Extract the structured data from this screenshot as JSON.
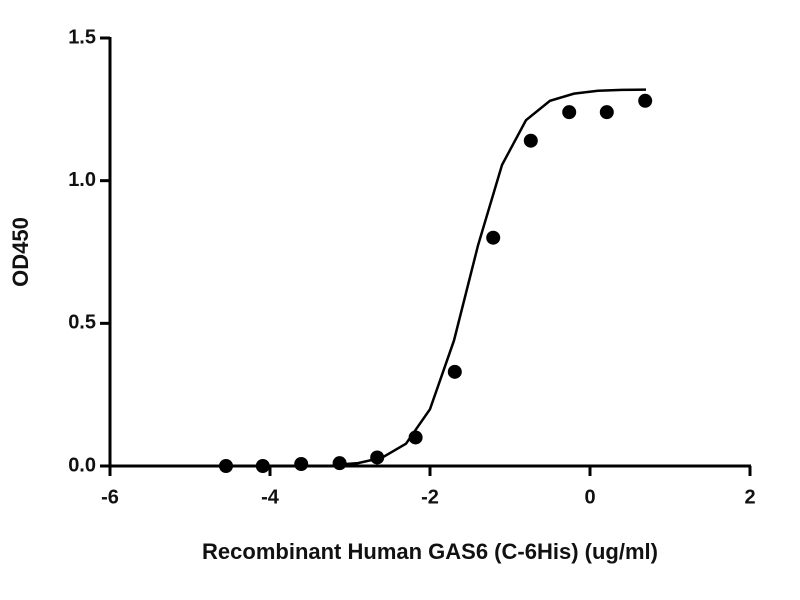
{
  "chart_data": {
    "type": "scatter",
    "x_label": "Recombinant Human GAS6 (C-6His) (ug/ml)",
    "y_label": "OD450",
    "x": [
      -4.55,
      -4.09,
      -3.61,
      -3.13,
      -2.66,
      -2.18,
      -1.69,
      -1.21,
      -0.74,
      -0.26,
      0.21,
      0.69
    ],
    "values": [
      0.0,
      0.0,
      0.007,
      0.01,
      0.03,
      0.1,
      0.33,
      0.8,
      1.14,
      1.24,
      1.24,
      1.28
    ],
    "color": "#000000",
    "fit": {
      "x": [
        -3.2,
        -2.9,
        -2.6,
        -2.3,
        -2.0,
        -1.7,
        -1.4,
        -1.1,
        -0.8,
        -0.5,
        -0.2,
        0.1,
        0.4,
        0.7
      ],
      "values": [
        0.004,
        0.01,
        0.029,
        0.078,
        0.199,
        0.44,
        0.773,
        1.055,
        1.212,
        1.28,
        1.305,
        1.315,
        1.318,
        1.319
      ],
      "color": "#000000"
    },
    "xlim": [
      -6,
      2
    ],
    "xticks": [
      -6,
      -4,
      -2,
      0,
      2
    ],
    "ylim": [
      0,
      1.5
    ],
    "yticks": [
      {
        "value": 0,
        "label": "0.0"
      },
      0.5,
      {
        "value": 1,
        "label": "1.0"
      },
      1.5
    ]
  }
}
